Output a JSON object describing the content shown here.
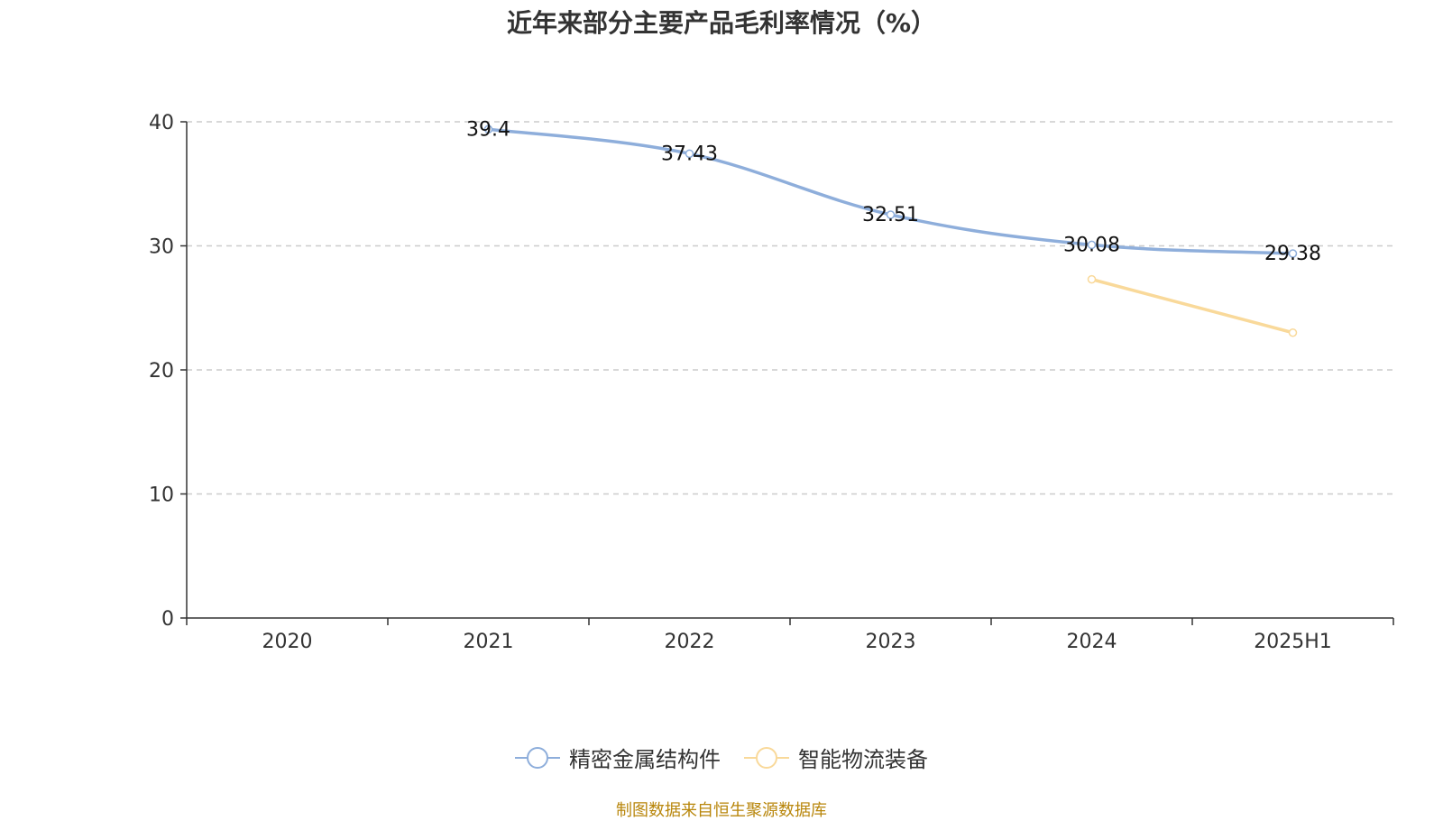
{
  "title": "近年来部分主要产品毛利率情况（%）",
  "source_note": "制图数据来自恒生聚源数据库",
  "chart_data": {
    "type": "line",
    "categories": [
      "2020",
      "2021",
      "2022",
      "2023",
      "2024",
      "2025H1"
    ],
    "ylim": [
      0,
      40
    ],
    "yticks": [
      0,
      10,
      20,
      30,
      40
    ],
    "grid": true,
    "legend_position": "bottom",
    "xlabel": "",
    "ylabel": "",
    "series": [
      {
        "name": "精密金属结构件",
        "color": "#8eaedb",
        "values": [
          null,
          39.4,
          37.43,
          32.51,
          30.08,
          29.38
        ],
        "labels": [
          "",
          "39.4",
          "37.43",
          "32.51",
          "30.08",
          "29.38"
        ]
      },
      {
        "name": "智能物流装备",
        "color": "#f9d99a",
        "values": [
          null,
          null,
          null,
          null,
          27.3,
          23.0
        ],
        "labels": [
          "",
          "",
          "",
          "",
          "",
          ""
        ]
      }
    ]
  }
}
